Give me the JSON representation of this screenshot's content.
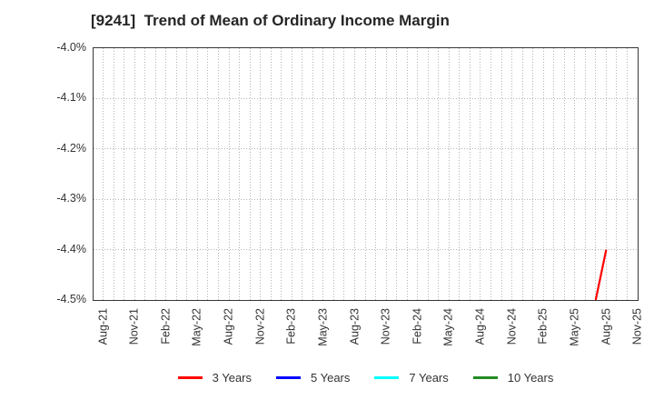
{
  "title": "[9241]  Trend of Mean of Ordinary Income Margin",
  "chart_data": {
    "type": "line",
    "title": "[9241]  Trend of Mean of Ordinary Income Margin",
    "xlabel": "",
    "ylabel": "",
    "y_unit": "%",
    "ylim": [
      -4.5,
      -4.0
    ],
    "y_tick_labels": [
      "-4.0%",
      "-4.1%",
      "-4.2%",
      "-4.3%",
      "-4.4%",
      "-4.5%"
    ],
    "x_tick_labels": [
      "Aug-21",
      "Nov-21",
      "Feb-22",
      "May-22",
      "Aug-22",
      "Nov-22",
      "Feb-23",
      "May-23",
      "Aug-23",
      "Nov-23",
      "Feb-24",
      "May-24",
      "Aug-24",
      "Nov-24",
      "Feb-25",
      "May-25",
      "Aug-25",
      "Nov-25"
    ],
    "x_axis": {
      "start_month": "Aug-21",
      "end_month": "Nov-25",
      "gridline_interval": "monthly",
      "tick_label_interval_months": 3
    },
    "grid": true,
    "grid_style": "dotted",
    "legend_position": "bottom-center",
    "series": [
      {
        "name": "3 Years",
        "color": "#ff0000",
        "points": [
          {
            "x": "Jul-25",
            "y": -4.5
          },
          {
            "x": "Aug-25",
            "y": -4.4
          }
        ]
      },
      {
        "name": "5 Years",
        "color": "#0000ff",
        "points": []
      },
      {
        "name": "7 Years",
        "color": "#00ffff",
        "points": []
      },
      {
        "name": "10 Years",
        "color": "#228b22",
        "points": []
      }
    ],
    "colors": {
      "grid": "#b4b4b4",
      "frame": "#383838",
      "text": "#333333",
      "background": "#ffffff"
    }
  }
}
